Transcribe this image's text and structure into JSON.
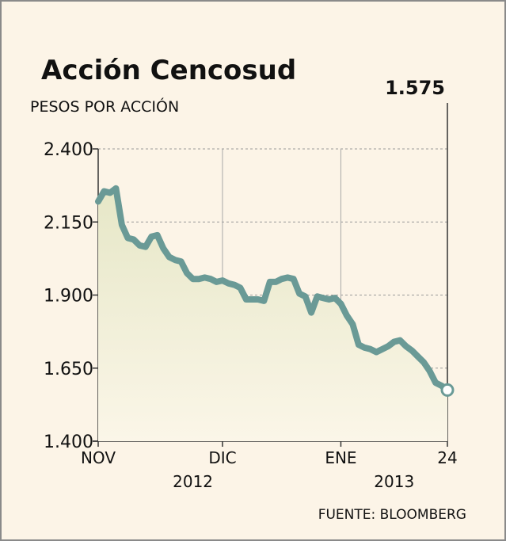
{
  "chart_data": {
    "type": "area",
    "title": "Acción Cencosud",
    "ylabel": "PESOS POR ACCIÓN",
    "ylim": [
      1400,
      2400
    ],
    "yticks": [
      "2.400",
      "2.150",
      "1.900",
      "1.650",
      "1.400"
    ],
    "ytick_values": [
      2400,
      2150,
      1900,
      1650,
      1400
    ],
    "xticks": [
      "NOV",
      "DIC",
      "ENE",
      "24"
    ],
    "xtick_index": [
      0,
      21,
      41,
      59
    ],
    "years": [
      {
        "label": "2012",
        "at_index": 16
      },
      {
        "label": "2013",
        "at_index": 50
      }
    ],
    "last_value_label": "1.575",
    "source": "FUENTE: BLOOMBERG",
    "grid": true,
    "line_color": "#6a9a96",
    "series": [
      {
        "values": [
          2220,
          2255,
          2250,
          2265,
          2140,
          2095,
          2090,
          2070,
          2065,
          2100,
          2105,
          2060,
          2030,
          2020,
          2015,
          1975,
          1955,
          1955,
          1960,
          1955,
          1945,
          1950,
          1940,
          1935,
          1925,
          1885,
          1885,
          1885,
          1880,
          1945,
          1945,
          1955,
          1960,
          1955,
          1905,
          1895,
          1840,
          1895,
          1890,
          1885,
          1890,
          1870,
          1830,
          1800,
          1730,
          1720,
          1715,
          1705,
          1715,
          1725,
          1740,
          1745,
          1725,
          1710,
          1690,
          1670,
          1640,
          1600,
          1590,
          1575
        ]
      }
    ]
  }
}
